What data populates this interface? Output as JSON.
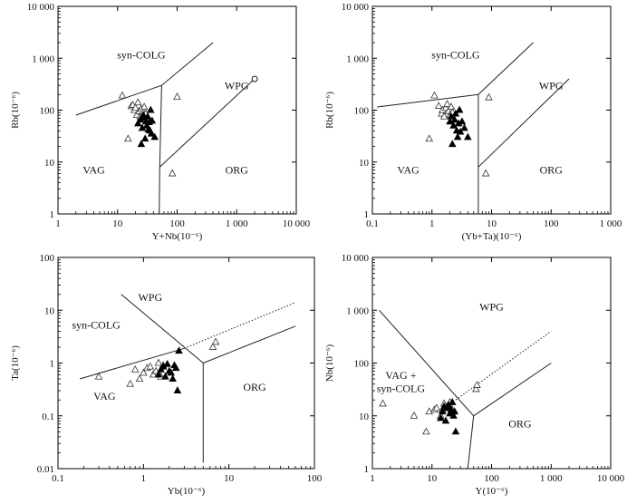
{
  "chart_data": [
    {
      "type": "scatter",
      "scale": "log-log",
      "xlabel": "Y+Nb(10⁻⁶)",
      "ylabel": "Rb(10⁻⁶)",
      "xlim": [
        1,
        10000
      ],
      "ylim": [
        1,
        10000
      ],
      "xticks": [
        "1",
        "10",
        "100",
        "1 000",
        "10 000"
      ],
      "yticks": [
        "1",
        "10",
        "100",
        "1 000",
        "10 000"
      ],
      "fields": [
        {
          "label": "syn-COLG",
          "x": 25,
          "y": 1000
        },
        {
          "label": "WPG",
          "x": 1000,
          "y": 250
        },
        {
          "label": "VAG",
          "x": 4,
          "y": 6
        },
        {
          "label": "ORG",
          "x": 1000,
          "y": 6
        }
      ],
      "boundaries": [
        {
          "style": "solid",
          "points": [
            [
              2,
              80
            ],
            [
              55,
              300
            ],
            [
              400,
              2000
            ]
          ]
        },
        {
          "style": "solid",
          "points": [
            [
              55,
              300
            ],
            [
              51,
              8
            ],
            [
              50,
              1
            ]
          ]
        },
        {
          "style": "solid",
          "points": [
            [
              51,
              8
            ],
            [
              2000,
              400
            ]
          ]
        }
      ],
      "series": [
        {
          "marker": "open-triangle",
          "points": [
            [
              12,
              190
            ],
            [
              15,
              28
            ],
            [
              17,
              118
            ],
            [
              18,
              125
            ],
            [
              19,
              100
            ],
            [
              20,
              110
            ],
            [
              21,
              80
            ],
            [
              22,
              140
            ],
            [
              23,
              95
            ],
            [
              24,
              75
            ],
            [
              25,
              105
            ],
            [
              27,
              90
            ],
            [
              28,
              115
            ],
            [
              30,
              85
            ],
            [
              83,
              6
            ],
            [
              100,
              180
            ]
          ]
        },
        {
          "marker": "filled-triangle",
          "points": [
            [
              22,
              55
            ],
            [
              24,
              65
            ],
            [
              25,
              22
            ],
            [
              26,
              45
            ],
            [
              27,
              80
            ],
            [
              28,
              70
            ],
            [
              29,
              28
            ],
            [
              30,
              60
            ],
            [
              31,
              50
            ],
            [
              32,
              75
            ],
            [
              33,
              42
            ],
            [
              34,
              58
            ],
            [
              35,
              40
            ],
            [
              36,
              100
            ],
            [
              37,
              35
            ],
            [
              38,
              62
            ],
            [
              42,
              30
            ]
          ]
        },
        {
          "marker": "open-circle",
          "points": [
            [
              2000,
              400
            ]
          ]
        }
      ]
    },
    {
      "type": "scatter",
      "scale": "log-log",
      "xlabel": "(Yb+Ta)(10⁻⁶)",
      "ylabel": "Rb(10⁻⁶)",
      "xlim": [
        0.1,
        1000
      ],
      "ylim": [
        1,
        10000
      ],
      "xticks": [
        "0.1",
        "1",
        "10",
        "100",
        "1 000"
      ],
      "yticks": [
        "1",
        "10",
        "100",
        "1 000",
        "10 000"
      ],
      "fields": [
        {
          "label": "syn-COLG",
          "x": 2.5,
          "y": 1000
        },
        {
          "label": "WPG",
          "x": 100,
          "y": 250
        },
        {
          "label": "VAG",
          "x": 0.4,
          "y": 6
        },
        {
          "label": "ORG",
          "x": 100,
          "y": 6
        }
      ],
      "boundaries": [
        {
          "style": "solid",
          "points": [
            [
              0.12,
              115
            ],
            [
              6,
              200
            ],
            [
              50,
              2000
            ]
          ]
        },
        {
          "style": "solid",
          "points": [
            [
              6,
              200
            ],
            [
              6,
              8
            ],
            [
              6,
              1
            ]
          ]
        },
        {
          "style": "solid",
          "points": [
            [
              6,
              8
            ],
            [
              200,
              400
            ]
          ]
        }
      ],
      "series": [
        {
          "marker": "open-triangle",
          "points": [
            [
              0.9,
              28
            ],
            [
              1.1,
              190
            ],
            [
              1.3,
              120
            ],
            [
              1.45,
              85
            ],
            [
              1.5,
              100
            ],
            [
              1.6,
              75
            ],
            [
              1.7,
              110
            ],
            [
              1.8,
              130
            ],
            [
              1.9,
              95
            ],
            [
              2.0,
              80
            ],
            [
              2.1,
              115
            ],
            [
              2.2,
              90
            ],
            [
              8,
              6
            ],
            [
              9,
              175
            ]
          ]
        },
        {
          "marker": "filled-triangle",
          "points": [
            [
              2.0,
              60
            ],
            [
              2.1,
              75
            ],
            [
              2.2,
              22
            ],
            [
              2.3,
              50
            ],
            [
              2.4,
              65
            ],
            [
              2.5,
              85
            ],
            [
              2.6,
              40
            ],
            [
              2.7,
              30
            ],
            [
              2.8,
              55
            ],
            [
              2.9,
              100
            ],
            [
              3.0,
              38
            ],
            [
              3.2,
              60
            ],
            [
              3.5,
              45
            ],
            [
              4.0,
              30
            ]
          ]
        }
      ]
    },
    {
      "type": "scatter",
      "scale": "log-log",
      "xlabel": "Yb(10⁻⁶)",
      "ylabel": "Ta(10⁻⁶)",
      "xlim": [
        0.1,
        100
      ],
      "ylim": [
        0.01,
        100
      ],
      "xticks": [
        "0.1",
        "1",
        "10",
        "100"
      ],
      "yticks": [
        "0.01",
        "0.1",
        "1",
        "10",
        "100"
      ],
      "fields": [
        {
          "label": "WPG",
          "x": 1.2,
          "y": 15
        },
        {
          "label": "syn-COLG",
          "x": 0.28,
          "y": 4.5
        },
        {
          "label": "VAG",
          "x": 0.35,
          "y": 0.2
        },
        {
          "label": "ORG",
          "x": 20,
          "y": 0.3
        }
      ],
      "boundaries": [
        {
          "style": "solid",
          "points": [
            [
              0.55,
              20
            ],
            [
              5,
              1
            ],
            [
              5,
              0.013
            ]
          ]
        },
        {
          "style": "solid",
          "points": [
            [
              0.18,
              0.5
            ],
            [
              3,
              1.9
            ]
          ]
        },
        {
          "style": "solid",
          "points": [
            [
              5,
              1
            ],
            [
              60,
              5
            ]
          ]
        },
        {
          "style": "dotted",
          "points": [
            [
              3,
              1.9
            ],
            [
              60,
              14
            ]
          ]
        }
      ],
      "series": [
        {
          "marker": "open-triangle",
          "points": [
            [
              0.3,
              0.55
            ],
            [
              0.7,
              0.4
            ],
            [
              0.8,
              0.75
            ],
            [
              0.9,
              0.5
            ],
            [
              1.0,
              0.65
            ],
            [
              1.1,
              0.8
            ],
            [
              1.2,
              0.85
            ],
            [
              1.3,
              0.6
            ],
            [
              1.4,
              0.7
            ],
            [
              1.5,
              1.0
            ],
            [
              1.6,
              0.55
            ],
            [
              1.7,
              0.9
            ],
            [
              6.5,
              2.0
            ],
            [
              7.0,
              2.5
            ]
          ]
        },
        {
          "marker": "filled-triangle",
          "points": [
            [
              1.5,
              0.6
            ],
            [
              1.6,
              0.75
            ],
            [
              1.7,
              0.85
            ],
            [
              1.8,
              0.55
            ],
            [
              1.9,
              0.95
            ],
            [
              2.0,
              0.7
            ],
            [
              2.1,
              0.65
            ],
            [
              2.2,
              0.5
            ],
            [
              2.3,
              0.9
            ],
            [
              2.4,
              0.8
            ],
            [
              2.5,
              0.3
            ],
            [
              2.6,
              1.7
            ]
          ]
        }
      ]
    },
    {
      "type": "scatter",
      "scale": "log-log",
      "xlabel": "Y(10⁻⁶)",
      "ylabel": "Nb(10⁻⁶)",
      "xlim": [
        1,
        10000
      ],
      "ylim": [
        1,
        10000
      ],
      "xticks": [
        "1",
        "10",
        "100",
        "1 000",
        "10 000"
      ],
      "yticks": [
        "1",
        "10",
        "100",
        "1 000",
        "10 000"
      ],
      "fields": [
        {
          "label": "WPG",
          "x": 100,
          "y": 1000
        },
        {
          "label": "VAG +",
          "x": 3,
          "y": 50
        },
        {
          "label": "syn-COLG",
          "x": 3,
          "y": 28
        },
        {
          "label": "ORG",
          "x": 300,
          "y": 6
        }
      ],
      "boundaries": [
        {
          "style": "solid",
          "points": [
            [
              1.3,
              1000
            ],
            [
              50,
              10
            ],
            [
              40,
              1
            ]
          ]
        },
        {
          "style": "solid",
          "points": [
            [
              50,
              10
            ],
            [
              1000,
              100
            ]
          ]
        },
        {
          "style": "dotted",
          "points": [
            [
              25,
              20
            ],
            [
              1000,
              400
            ]
          ]
        }
      ],
      "series": [
        {
          "marker": "open-triangle",
          "points": [
            [
              1.5,
              17
            ],
            [
              5,
              10
            ],
            [
              8,
              5
            ],
            [
              9,
              12
            ],
            [
              11,
              13
            ],
            [
              12,
              14
            ],
            [
              14,
              10
            ],
            [
              15,
              13
            ],
            [
              16,
              17
            ],
            [
              18,
              15
            ],
            [
              20,
              18
            ],
            [
              22,
              13
            ],
            [
              55,
              32
            ],
            [
              57,
              38
            ]
          ]
        },
        {
          "marker": "filled-triangle",
          "points": [
            [
              14,
              9
            ],
            [
              15,
              12
            ],
            [
              16,
              15
            ],
            [
              17,
              8
            ],
            [
              18,
              14
            ],
            [
              19,
              16
            ],
            [
              20,
              11
            ],
            [
              21,
              13
            ],
            [
              22,
              18
            ],
            [
              23,
              10
            ],
            [
              24,
              12
            ],
            [
              25,
              5
            ]
          ]
        }
      ]
    }
  ]
}
